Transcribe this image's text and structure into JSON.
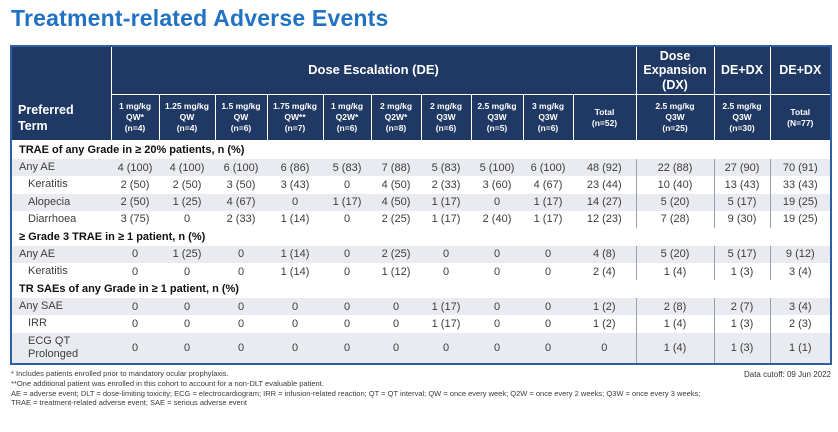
{
  "title": "Treatment-related Adverse Events",
  "colors": {
    "title_blue": "#2172C2",
    "header_bg": "#1F3864",
    "stripe": "#E9EBF0",
    "table_border": "#2E5FA3"
  },
  "table": {
    "row_header": "Preferred\nTerm",
    "groups": [
      {
        "label": "Dose Escalation (DE)",
        "span": 10
      },
      {
        "label": "Dose\nExpansion\n(DX)",
        "span": 1
      },
      {
        "label": "DE+DX",
        "span": 1
      },
      {
        "label": "DE+DX",
        "span": 1
      }
    ],
    "columns": [
      "1 mg/kg\nQW*\n(n=4)",
      "1.25 mg/kg\nQW\n(n=4)",
      "1.5 mg/kg\nQW\n(n=6)",
      "1.75 mg/kg\nQW**\n(n=7)",
      "1 mg/kg\nQ2W*\n(n=6)",
      "2 mg/kg\nQ2W*\n(n=8)",
      "2 mg/kg\nQ3W\n(n=6)",
      "2.5 mg/kg\nQ3W\n(n=5)",
      "3 mg/kg\nQ3W\n(n=6)",
      "Total\n(n=52)",
      "2.5 mg/kg\nQ3W\n(n=25)",
      "2.5 mg/kg\nQ3W\n(n=30)",
      "Total\n(N=77)"
    ],
    "sections": [
      {
        "header": "TRAE of any Grade in ≥ 20% patients, n (%)",
        "rows": [
          {
            "label": "Any AE",
            "values": [
              "4 (100)",
              "4 (100)",
              "6 (100)",
              "6 (86)",
              "5 (83)",
              "7 (88)",
              "5 (83)",
              "5 (100)",
              "6 (100)",
              "48 (92)",
              "22 (88)",
              "27 (90)",
              "70 (91)"
            ]
          },
          {
            "label": "Keratitis",
            "values": [
              "2 (50)",
              "2 (50)",
              "3 (50)",
              "3 (43)",
              "0",
              "4 (50)",
              "2 (33)",
              "3 (60)",
              "4 (67)",
              "23 (44)",
              "10 (40)",
              "13 (43)",
              "33 (43)"
            ]
          },
          {
            "label": "Alopecia",
            "values": [
              "2 (50)",
              "1 (25)",
              "4 (67)",
              "0",
              "1 (17)",
              "4 (50)",
              "1 (17)",
              "0",
              "1 (17)",
              "14 (27)",
              "5 (20)",
              "5 (17)",
              "19 (25)"
            ]
          },
          {
            "label": "Diarrhoea",
            "values": [
              "3 (75)",
              "0",
              "2 (33)",
              "1 (14)",
              "0",
              "2 (25)",
              "1 (17)",
              "2 (40)",
              "1 (17)",
              "12 (23)",
              "7 (28)",
              "9 (30)",
              "19 (25)"
            ]
          }
        ]
      },
      {
        "header": "≥ Grade 3 TRAE in ≥ 1 patient, n (%)",
        "rows": [
          {
            "label": "Any AE",
            "values": [
              "0",
              "1 (25)",
              "0",
              "1 (14)",
              "0",
              "2 (25)",
              "0",
              "0",
              "0",
              "4 (8)",
              "5 (20)",
              "5 (17)",
              "9 (12)"
            ]
          },
          {
            "label": "Keratitis",
            "values": [
              "0",
              "0",
              "0",
              "1 (14)",
              "0",
              "1 (12)",
              "0",
              "0",
              "0",
              "2 (4)",
              "1 (4)",
              "1 (3)",
              "3 (4)"
            ]
          }
        ]
      },
      {
        "header": "TR SAEs of any Grade in ≥ 1 patient, n (%)",
        "rows": [
          {
            "label": "Any SAE",
            "values": [
              "0",
              "0",
              "0",
              "0",
              "0",
              "0",
              "1 (17)",
              "0",
              "0",
              "1 (2)",
              "2 (8)",
              "2 (7)",
              "3 (4)"
            ]
          },
          {
            "label": "IRR",
            "values": [
              "0",
              "0",
              "0",
              "0",
              "0",
              "0",
              "1 (17)",
              "0",
              "0",
              "1 (2)",
              "1 (4)",
              "1 (3)",
              "2 (3)"
            ]
          },
          {
            "label": "ECG QT\nProlonged",
            "values": [
              "0",
              "0",
              "0",
              "0",
              "0",
              "0",
              "0",
              "0",
              "0",
              "0",
              "1 (4)",
              "1 (3)",
              "1 (1)"
            ]
          }
        ]
      }
    ]
  },
  "footer": {
    "footnotes": [
      "* Includes patients enrolled prior to mandatory ocular prophylaxis.",
      "**One additional patient was enrolled in this cohort to account for a non-DLT evaluable patient.",
      "AE = adverse event; DLT = dose-limiting toxicity; ECG = electrocardiogram; IRR = infusion-related reaction; QT = QT interval; QW = once every week; Q2W = once every 2 weeks; Q3W = once every 3 weeks;",
      "TRAE = treatment-related adverse event; SAE = serious adverse event"
    ],
    "data_cutoff": "Data cutoff: 09 Jun 2022"
  }
}
